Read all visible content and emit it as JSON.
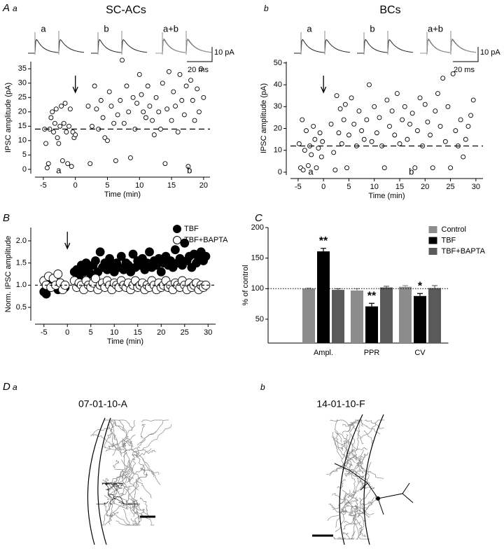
{
  "panel_labels": [
    "A",
    "a",
    "b",
    "B",
    "C",
    "D",
    "a",
    "b"
  ],
  "morphology": {
    "cells": [
      {
        "label": "07-01-10-A"
      },
      {
        "label": "14-01-10-F"
      }
    ]
  },
  "chart_data": [
    {
      "type": "scatter",
      "title": "SC-ACs",
      "x": [
        -4.8,
        -4.6,
        -4.4,
        -4.2,
        -4,
        -3.8,
        -3.6,
        -3.4,
        -3.2,
        -3,
        -2.8,
        -2.6,
        -2.4,
        -2.2,
        -2,
        -1.8,
        -1.6,
        -1.4,
        -1.2,
        -1,
        -0.8,
        -0.6,
        -0.4,
        -0.2,
        0,
        2,
        2.3,
        2.6,
        3,
        3.3,
        3.6,
        4,
        4.3,
        4.6,
        5,
        5.3,
        5.6,
        6,
        6.3,
        6.6,
        7,
        7.3,
        7.6,
        8,
        8.3,
        8.6,
        9,
        9.3,
        9.6,
        10,
        10.3,
        10.6,
        11,
        11.3,
        11.6,
        12,
        12.3,
        12.6,
        13,
        13.3,
        13.6,
        14,
        14.3,
        14.6,
        15,
        15.3,
        15.6,
        16,
        16.3,
        16.6,
        17,
        17.3,
        17.6,
        18,
        18.3,
        18.6,
        19,
        19.3,
        19.6,
        20
      ],
      "values": [
        14,
        9,
        0.5,
        2,
        14,
        18,
        20,
        13,
        16,
        21,
        11,
        9,
        15,
        22,
        3,
        16,
        23,
        13,
        2,
        15,
        21,
        1,
        13,
        11,
        12,
        22,
        2,
        15,
        29,
        21,
        14,
        24,
        18,
        11,
        10,
        27,
        22,
        16,
        3,
        19,
        24,
        38,
        16,
        29,
        20,
        4,
        25,
        14,
        23,
        33,
        26,
        20,
        18,
        29,
        22,
        17,
        12,
        25,
        20,
        14,
        30,
        2,
        21,
        34,
        17,
        27,
        22,
        13,
        33,
        24,
        19,
        29,
        1,
        31,
        24,
        17,
        28,
        20,
        35,
        25
      ],
      "xlim": [
        -6.3,
        21
      ],
      "ylim": [
        -1.5,
        37.5
      ],
      "xticks": [
        -5,
        0,
        5,
        10,
        15,
        20
      ],
      "yticks": [
        0,
        5,
        10,
        15,
        20,
        25,
        30,
        35
      ],
      "xlabel": "Time (min)",
      "ylabel": "IPSC amplitude (pA)",
      "marker": "open",
      "color": "#000000",
      "baseline": 14,
      "arrow_x": 0,
      "period_labels": [
        {
          "x": -2.6,
          "label": "a"
        },
        {
          "x": 17.8,
          "label": "b"
        }
      ],
      "trace_labels": [
        "a",
        "b",
        "a+b"
      ],
      "scale_bars": [
        "10 pA",
        "20 ms"
      ]
    },
    {
      "type": "scatter",
      "title": "BCs",
      "x": [
        -4.8,
        -4.5,
        -4.2,
        -4,
        -3.7,
        -3.4,
        -3,
        -2.7,
        -2.4,
        -2,
        -1.7,
        -1.4,
        -1,
        -0.7,
        -0.4,
        -0.2,
        1.5,
        2,
        2.3,
        2.6,
        3,
        3.3,
        3.6,
        4,
        4.3,
        4.6,
        5,
        5.5,
        6,
        6.5,
        7,
        7.5,
        8,
        8.5,
        9,
        9.5,
        10,
        10.5,
        11,
        11.5,
        12,
        12.5,
        13,
        13.5,
        14,
        14.5,
        15,
        15.5,
        16,
        16.5,
        17,
        17.5,
        18,
        18.5,
        19,
        19.5,
        20,
        20.5,
        21,
        21.5,
        22,
        22.5,
        23,
        23.5,
        24,
        24.5,
        25,
        25.5,
        26,
        26.5,
        27,
        27.5,
        28,
        28.5,
        29,
        29.5
      ],
      "values": [
        13,
        2,
        24,
        1,
        10,
        19,
        3,
        12,
        8,
        21,
        15,
        2,
        11,
        18,
        7,
        14,
        22,
        9,
        1,
        35,
        18,
        29,
        13,
        24,
        31,
        2,
        17,
        34,
        22,
        12,
        28,
        19,
        15,
        24,
        40,
        14,
        30,
        18,
        25,
        12,
        2,
        33,
        21,
        28,
        17,
        36,
        13,
        24,
        30,
        15,
        22,
        27,
        2,
        19,
        34,
        12,
        31,
        23,
        17,
        2,
        28,
        36,
        21,
        43,
        14,
        30,
        2,
        45,
        19,
        12,
        24,
        7,
        15,
        21,
        26,
        33
      ],
      "xlim": [
        -6.5,
        31.4
      ],
      "ylim": [
        -1.3,
        50.6
      ],
      "xticks": [
        -5,
        0,
        5,
        10,
        15,
        20,
        25,
        30
      ],
      "yticks": [
        0,
        10,
        20,
        30,
        40,
        50
      ],
      "xlabel": "Time (min)",
      "ylabel": "IPSC amplitude (pA)",
      "marker": "open",
      "color": "#000000",
      "baseline": 12,
      "arrow_x": 0,
      "period_labels": [
        {
          "x": -2.5,
          "label": "a"
        },
        {
          "x": 17.3,
          "label": "b"
        }
      ],
      "trace_labels": [
        "a",
        "b",
        "a+b"
      ],
      "scale_bars": [
        "10 pA",
        "20 ms"
      ]
    },
    {
      "type": "scatter",
      "x": [
        -5,
        -4.5,
        -4,
        -3.5,
        -3,
        -2.5,
        -2,
        -1.5,
        -1,
        -0.5,
        1.5,
        2,
        2.5,
        3,
        3.5,
        4,
        4.5,
        5,
        5.5,
        6,
        6.5,
        7,
        7.5,
        8,
        8.5,
        9,
        9.5,
        10,
        10.5,
        11,
        11.5,
        12,
        12.5,
        13,
        13.5,
        14,
        14.5,
        15,
        15.5,
        16,
        16.5,
        17,
        17.5,
        18,
        18.5,
        19,
        19.5,
        20,
        20.5,
        21,
        21.5,
        22,
        22.5,
        23,
        23.5,
        24,
        24.5,
        25,
        25.5,
        26,
        26.5,
        27,
        27.5,
        28,
        28.5,
        29,
        29.5
      ],
      "series": [
        {
          "name": "TBF",
          "marker": "filled",
          "color": "#000000",
          "values": [
            0.85,
            0.8,
            1.0,
            0.95,
            1.1,
            1.0,
            0.9,
            1.05,
            1.0,
            0.95,
            1.3,
            1.35,
            1.2,
            1.45,
            1.3,
            1.5,
            1.35,
            1.25,
            1.45,
            1.55,
            1.3,
            1.75,
            1.4,
            1.5,
            1.35,
            1.6,
            1.45,
            1.3,
            1.5,
            1.4,
            1.65,
            1.35,
            1.5,
            1.45,
            1.3,
            1.7,
            1.4,
            1.55,
            1.45,
            1.6,
            1.35,
            1.5,
            1.75,
            1.4,
            1.55,
            1.45,
            1.6,
            1.3,
            1.5,
            1.65,
            1.45,
            1.55,
            1.4,
            1.8,
            1.5,
            1.6,
            1.45,
            1.95,
            1.55,
            1.65,
            1.4,
            1.7,
            1.5,
            1.6,
            1.75,
            1.55,
            1.65
          ]
        },
        {
          "name": "TBF+BAPTA",
          "marker": "open",
          "color": "#000000",
          "values": [
            1.1,
            1.0,
            1.2,
            0.95,
            1.15,
            1.0,
            1.25,
            1.05,
            0.9,
            1.0,
            1.1,
            0.95,
            1.05,
            1.0,
            0.9,
            1.1,
            1.0,
            0.95,
            1.05,
            1.15,
            0.9,
            1.0,
            1.05,
            0.95,
            1.1,
            1.0,
            0.9,
            1.05,
            1.0,
            0.95,
            1.1,
            1.0,
            0.95,
            1.05,
            0.9,
            1.0,
            1.1,
            0.95,
            1.0,
            1.05,
            0.9,
            1.0,
            0.95,
            1.1,
            1.0,
            0.9,
            1.05,
            0.95,
            1.0,
            1.1,
            0.95,
            1.0,
            0.9,
            1.05,
            1.0,
            0.95,
            1.1,
            1.0,
            0.9,
            1.05,
            0.95,
            1.0,
            1.05,
            0.9,
            1.0,
            0.95,
            1.0
          ]
        }
      ],
      "xlim": [
        -6.9,
        31.6
      ],
      "ylim": [
        0.2,
        2.3
      ],
      "xticks": [
        -5,
        0,
        5,
        10,
        15,
        20,
        25,
        30
      ],
      "yticks": [
        0.5,
        {
          "value": 1,
          "label": "1.0"
        },
        1.5,
        {
          "value": 2,
          "label": "2.0"
        }
      ],
      "xlabel": "Time (min)",
      "ylabel": "Norm. IPSC amplitude",
      "baseline": 1,
      "arrow_x": 0,
      "legend": "top-right"
    },
    {
      "type": "bar",
      "categories": [
        "Ampl.",
        "PPR",
        "CV"
      ],
      "series": [
        {
          "name": "Control",
          "color": "#8c8c8c",
          "values": [
            100,
            97,
            103
          ],
          "errors": [
            1,
            3,
            2
          ]
        },
        {
          "name": "TBF",
          "color": "#000000",
          "values": [
            161,
            71,
            88
          ],
          "errors": [
            5,
            5,
            4
          ]
        },
        {
          "name": "TBF+BAPTA",
          "color": "#5a5a5a",
          "values": [
            98,
            102,
            101
          ],
          "errors": [
            2,
            2,
            4
          ]
        }
      ],
      "annotations": [
        "**",
        "**",
        "*"
      ],
      "ylim": [
        11,
        200
      ],
      "yticks": [
        50,
        100,
        150,
        200
      ],
      "ylabel": "% of control",
      "ref_line": 100,
      "legend": "top-right"
    }
  ]
}
